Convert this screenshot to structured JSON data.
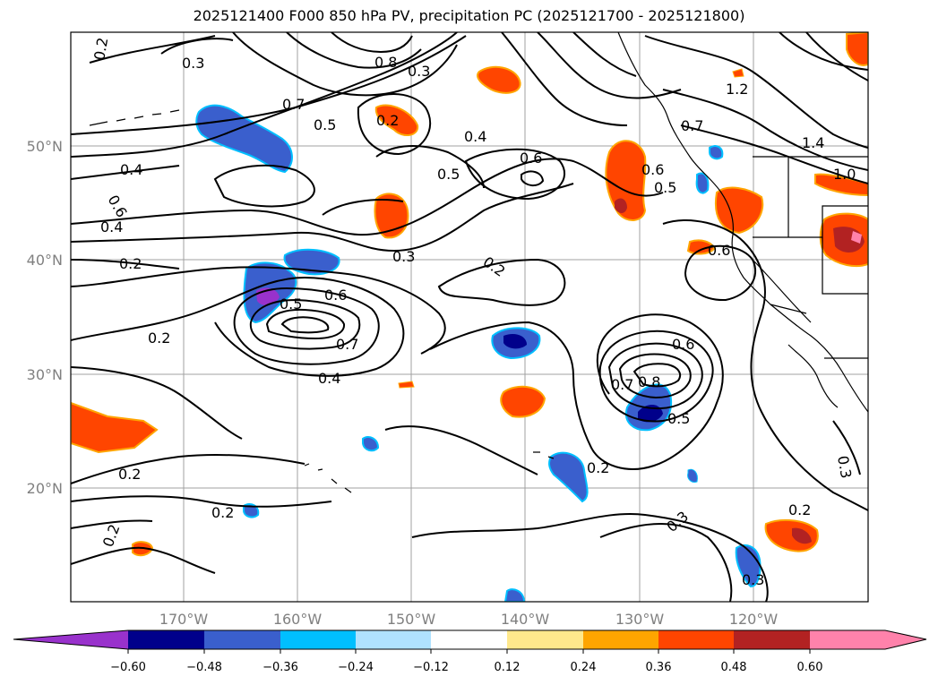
{
  "title": "2025121400 F000 850 hPa PV, precipitation PC (2025121700 - 2025121800)",
  "map": {
    "lon_ticks": [
      "170°W",
      "160°W",
      "150°W",
      "140°W",
      "130°W",
      "120°W"
    ],
    "lat_ticks": [
      "50°N",
      "40°N",
      "30°N",
      "20°N"
    ],
    "gridline_color": "#a0a0a0",
    "coast_color": "#000000"
  },
  "contours": {
    "labels": [
      "0.2",
      "0.3",
      "0.4",
      "0.5",
      "0.6",
      "0.7",
      "0.8",
      "1.0",
      "1.2",
      "1.4"
    ]
  },
  "colorbar": {
    "ticks": [
      "−0.60",
      "−0.48",
      "−0.36",
      "−0.24",
      "−0.12",
      "0.12",
      "0.24",
      "0.36",
      "0.48",
      "0.60"
    ],
    "colors": [
      "#9932cc",
      "#00008b",
      "#3a5fcd",
      "#00bfff",
      "#b0e2ff",
      "#ffffff",
      "#ffe88c",
      "#ffa500",
      "#ff4500",
      "#b22222",
      "#ff82ab"
    ]
  }
}
